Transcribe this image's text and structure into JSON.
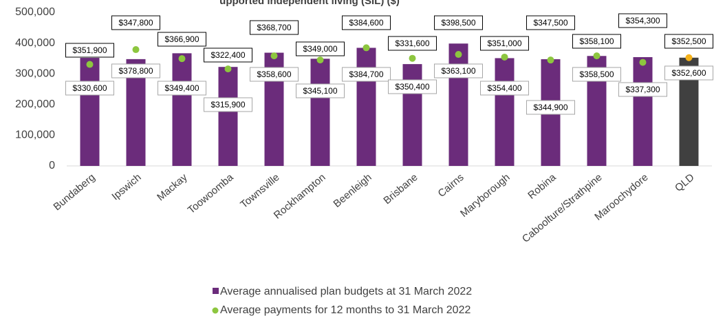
{
  "chart_data": {
    "type": "bar",
    "title": "upported independent living (SIL) ($)",
    "categories": [
      "Bundaberg",
      "Ipswich",
      "Mackay",
      "Toowoomba",
      "Townsville",
      "Rockhampton",
      "Beenleigh",
      "Brisbane",
      "Cairns",
      "Maryborough",
      "Robina",
      "Caboolture/Strathpine",
      "Maroochydore",
      "QLD"
    ],
    "series": [
      {
        "name": "Average annualised plan budgets at 31 March 2022",
        "color": "#6b2c7b",
        "colors": [
          "#6b2c7b",
          "#6b2c7b",
          "#6b2c7b",
          "#6b2c7b",
          "#6b2c7b",
          "#6b2c7b",
          "#6b2c7b",
          "#6b2c7b",
          "#6b2c7b",
          "#6b2c7b",
          "#6b2c7b",
          "#6b2c7b",
          "#6b2c7b",
          "#404040"
        ],
        "values": [
          351900,
          347800,
          366900,
          322400,
          368700,
          349000,
          384600,
          331600,
          398500,
          351000,
          347500,
          358100,
          354300,
          352500
        ],
        "value_labels": [
          "$351,900",
          "$347,800",
          "$366,900",
          "$322,400",
          "$368,700",
          "$349,000",
          "$384,600",
          "$331,600",
          "$398,500",
          "$351,000",
          "$347,500",
          "$358,100",
          "$354,300",
          "$352,500"
        ]
      },
      {
        "name": "Average payments for 12 months to 31 March 2022",
        "color": "#8dc63f",
        "colors": [
          "#8dc63f",
          "#8dc63f",
          "#8dc63f",
          "#8dc63f",
          "#8dc63f",
          "#8dc63f",
          "#8dc63f",
          "#8dc63f",
          "#8dc63f",
          "#8dc63f",
          "#8dc63f",
          "#8dc63f",
          "#8dc63f",
          "#f5b21b"
        ],
        "values": [
          330600,
          378800,
          349400,
          315900,
          358600,
          345100,
          384700,
          350400,
          363100,
          354400,
          344900,
          358500,
          337300,
          352600
        ],
        "value_labels": [
          "$330,600",
          "$378,800",
          "$349,400",
          "$315,900",
          "$358,600",
          "$345,100",
          "$384,700",
          "$350,400",
          "$363,100",
          "$354,400",
          "$344,900",
          "$358,500",
          "$337,300",
          "$352,600"
        ]
      }
    ],
    "ylim": [
      0,
      500000
    ],
    "yticks": [
      0,
      {
        "value": 100000,
        "label": "100,000"
      },
      {
        "value": 200000,
        "label": "200,000"
      },
      {
        "value": 300000,
        "label": "300,000"
      },
      {
        "value": 400000,
        "label": "400,000"
      },
      {
        "value": 500000,
        "label": "500,000"
      }
    ]
  }
}
